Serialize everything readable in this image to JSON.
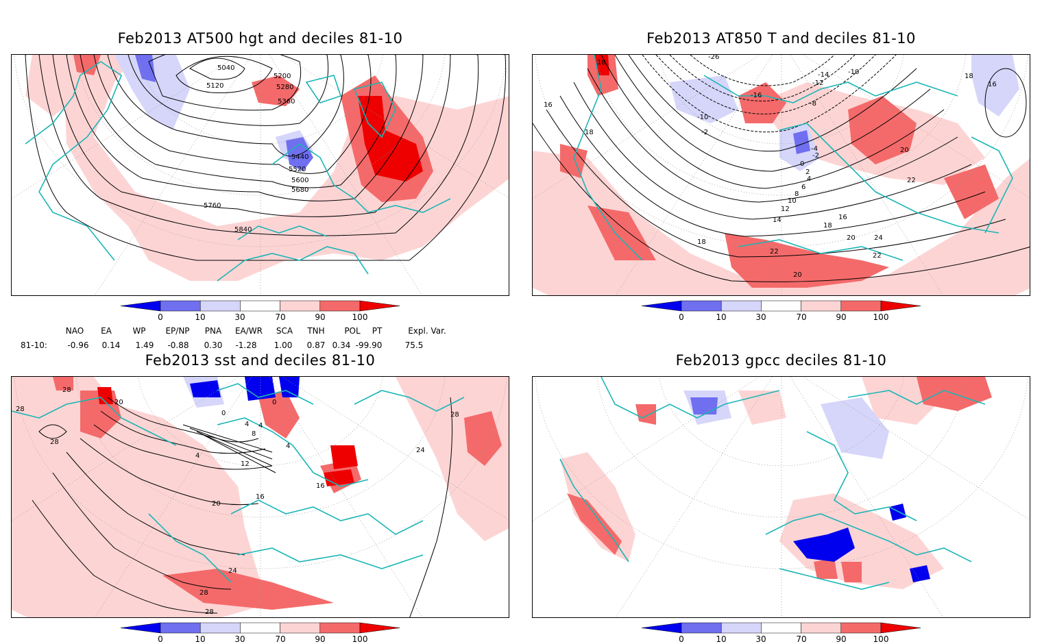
{
  "panels": [
    {
      "id": "p1",
      "title": "Feb2013 AT500 hgt and deciles 81-10",
      "contour_labels": [
        "5040",
        "5120",
        "5200",
        "5280",
        "5360",
        "5440",
        "5520",
        "5600",
        "5680",
        "5760",
        "5840"
      ]
    },
    {
      "id": "p2",
      "title": "Feb2013 AT850 T and deciles 81-10",
      "contour_labels": [
        "-26",
        "-14",
        "-10",
        "-12",
        "-16",
        "-8",
        "-10",
        "-2",
        "-4",
        "-2",
        "0",
        "2",
        "4",
        "6",
        "8",
        "10",
        "12",
        "14",
        "16",
        "18",
        "20",
        "22",
        "24",
        "22",
        "20",
        "18",
        "16",
        "18",
        "16",
        "18",
        "20",
        "22",
        "18"
      ]
    },
    {
      "id": "p3",
      "title": "Feb2013 sst and deciles 81-10",
      "contour_labels": [
        "28",
        "28",
        "28",
        "20",
        "0",
        "0",
        "4",
        "4",
        "8",
        "4",
        "12",
        "16",
        "20",
        "24",
        "28",
        "28",
        "24",
        "28",
        "16",
        "4"
      ]
    },
    {
      "id": "p4",
      "title": "Feb2013 gpcc deciles 81-10",
      "contour_labels": []
    }
  ],
  "colorbar": {
    "labels": [
      "0",
      "10",
      "30",
      "70",
      "90",
      "100"
    ],
    "colors": {
      "lt0": "#0000ee",
      "d0_10": "#6f6ff0",
      "d10_30": "#d6d6fa",
      "d30_70": "#ffffff",
      "d70_90": "#fdd4d4",
      "d90_100": "#f46a6a",
      "gt100": "#ee0000"
    }
  },
  "indices": {
    "headers": [
      "NAO",
      "EA",
      "WP",
      "EP/NP",
      "PNA",
      "EA/WR",
      "SCA",
      "TNH",
      "POL",
      "PT",
      "Expl. Var."
    ],
    "row_label": "81-10:",
    "values": [
      "-0.96",
      "0.14",
      "1.49",
      "-0.88",
      "0.30",
      "-1.28",
      "1.00",
      "0.87",
      "0.34",
      "-99.90",
      "75.5"
    ]
  },
  "map_colors": {
    "coast": "#1bb5b5",
    "contour": "#000000",
    "grid": "#9a9a9a"
  }
}
